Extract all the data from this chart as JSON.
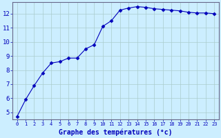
{
  "x": [
    0,
    1,
    2,
    3,
    4,
    5,
    6,
    7,
    8,
    9,
    10,
    11,
    12,
    13,
    14,
    15,
    16,
    17,
    18,
    19,
    20,
    21,
    22,
    23
  ],
  "y": [
    4.7,
    5.9,
    6.9,
    7.8,
    8.5,
    8.6,
    8.85,
    8.85,
    9.5,
    9.8,
    11.1,
    11.5,
    12.25,
    12.4,
    12.5,
    12.45,
    12.35,
    12.3,
    12.25,
    12.2,
    12.1,
    12.05,
    12.05,
    12.0
  ],
  "line_color": "#0000bb",
  "marker": "D",
  "marker_size": 2.5,
  "bg_color": "#cceeff",
  "grid_color": "#aacccc",
  "xlabel": "Graphe des températures (°c)",
  "xlabel_fontsize": 7,
  "ylabel_ticks": [
    5,
    6,
    7,
    8,
    9,
    10,
    11,
    12
  ],
  "xtick_labels": [
    "0",
    "1",
    "2",
    "3",
    "4",
    "5",
    "6",
    "7",
    "8",
    "9",
    "10",
    "11",
    "12",
    "13",
    "14",
    "15",
    "16",
    "17",
    "18",
    "19",
    "20",
    "21",
    "22",
    "23"
  ],
  "ylim": [
    4.5,
    12.8
  ],
  "xlim": [
    -0.5,
    23.5
  ],
  "tick_color": "#0000bb",
  "spine_color": "#666688"
}
